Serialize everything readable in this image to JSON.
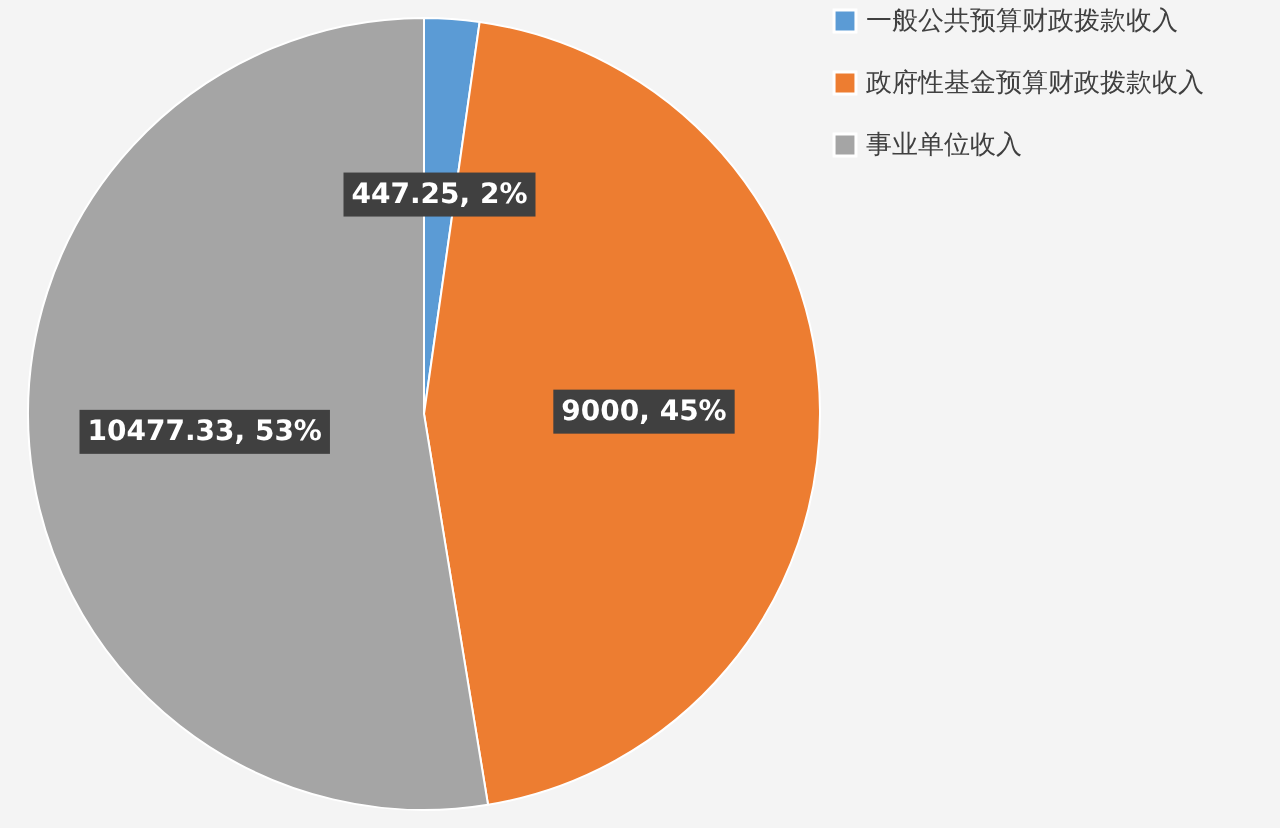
{
  "chart_data": {
    "type": "pie",
    "categories": [
      "一般公共预算财政拨款收入",
      "政府性基金预算财政拨款收入",
      "事业单位收入"
    ],
    "values": [
      447.25,
      9000,
      10477.33
    ],
    "colors": [
      "#5b9bd5",
      "#ed7d31",
      "#a5a5a5"
    ],
    "value_labels": [
      "447.25, 2%",
      "9000, 45%",
      "10477.33, 53%"
    ],
    "legend": "right"
  }
}
